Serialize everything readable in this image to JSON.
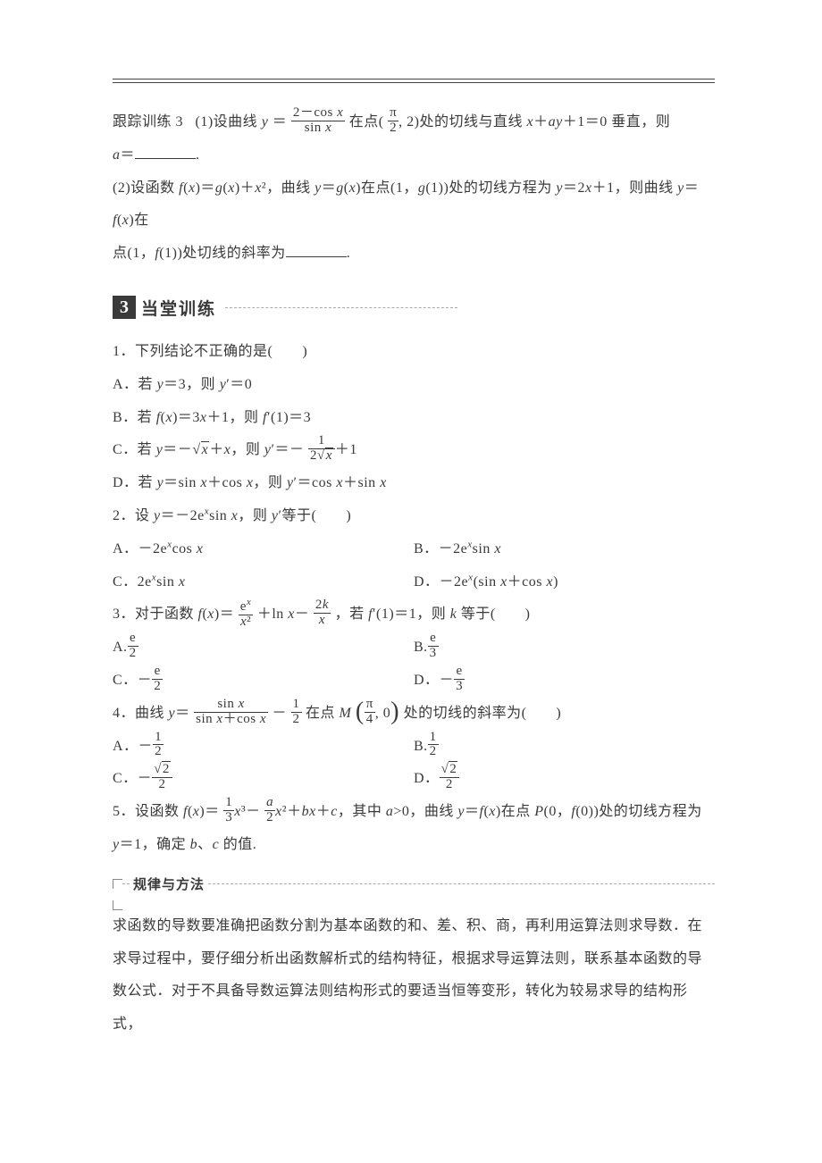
{
  "colors": {
    "text": "#3a3a3a",
    "bg": "#ffffff",
    "rule": "#444444",
    "dash": "#aaaaaa",
    "hdr_bg": "#3a3a3a",
    "hdr_fg": "#ffffff"
  },
  "typography": {
    "body_fontsize_pt": 12,
    "line_height": 2.3,
    "header_fontsize_pt": 14
  },
  "tracking": {
    "label": "跟踪训练 3",
    "p1_a": "(1)设曲线 ",
    "p1_b": "＝",
    "p1_frac_num": "2－cos ",
    "p1_frac_den": "sin ",
    "p1_c": " 在点(",
    "p1_pi2_num": "π",
    "p1_pi2_den": "2",
    "p1_d": ", 2)处的切线与直线 ",
    "p1_e": "＋",
    "p1_f": "＋1＝0 垂直，则",
    "p1_line2": "＝",
    "p2_a": "(2)设函数 ",
    "p2_b": "(",
    "p2_c": ")＝",
    "p2_d": "(",
    "p2_e": ")＋",
    "p2_f": "²，曲线 ",
    "p2_g": "＝",
    "p2_h": "(",
    "p2_i": ")在点(1，",
    "p2_j": "(1))处的切线方程为 ",
    "p2_k": "＝2",
    "p2_l": "＋1，则曲线 ",
    "p2_m": "＝",
    "p2_n": "(",
    "p2_o": ")在",
    "p2_line2a": "点(1，",
    "p2_line2b": "(1))处切线的斜率为",
    "period": "."
  },
  "section": {
    "num": "3",
    "title": "当堂训练"
  },
  "q1": {
    "stem": "1．下列结论不正确的是(　　)",
    "A_a": "A．若 ",
    "A_b": "＝3，则 ",
    "A_c": "′＝0",
    "B_a": "B．若 ",
    "B_b": "(",
    "B_c": ")＝3",
    "B_d": "＋1，则 ",
    "B_e": "′(1)＝3",
    "C_a": "C．若 ",
    "C_b": "＝－",
    "C_c": "＋",
    "C_d": "，则 ",
    "C_e": "′＝－",
    "C_frac_num": "1",
    "C_frac_den_a": "2",
    "C_f": "＋1",
    "D_a": "D．若 ",
    "D_b": "＝sin ",
    "D_c": "＋cos ",
    "D_d": "，则 ",
    "D_e": "′＝cos ",
    "D_f": "＋sin "
  },
  "q2": {
    "stem_a": "2．设 ",
    "stem_b": "＝－2e",
    "stem_c": "sin ",
    "stem_d": "，则 ",
    "stem_e": "′等于(　　)",
    "A": "A．－2e",
    "A2": "cos ",
    "B": "B．－2e",
    "B2": "sin ",
    "C": "C．2e",
    "C2": "sin ",
    "D": "D．－2e",
    "D2": "(sin ",
    "D3": "＋cos ",
    "D4": ")"
  },
  "q3": {
    "stem_a": "3．对于函数 ",
    "stem_b": "(",
    "stem_c": ")＝",
    "f1_num": "e",
    "f1_den": "²",
    "stem_d": "＋ln ",
    "stem_e": "－",
    "f2_num": "2",
    "f2_den": "",
    "stem_f": "，若 ",
    "stem_g": "′(1)＝1，则 ",
    "stem_h": " 等于(　　)",
    "A": "A.",
    "A_num": "e",
    "A_den": "2",
    "B": "B.",
    "B_num": "e",
    "B_den": "3",
    "C": "C．－",
    "C_num": "e",
    "C_den": "2",
    "D": "D．－",
    "D_num": "e",
    "D_den": "3"
  },
  "q4": {
    "stem_a": "4．曲线 ",
    "stem_b": "＝",
    "f_num_a": "sin ",
    "f_den_a": "sin ",
    "f_den_b": "＋cos ",
    "stem_c": "－",
    "half_num": "1",
    "half_den": "2",
    "stem_d": "在点 ",
    "pt_num": "π",
    "pt_den": "4",
    "pt_after": ", 0",
    "stem_e": "处的切线的斜率为(　　)",
    "A": "A．－",
    "A_num": "1",
    "A_den": "2",
    "B": "B.",
    "B_num": "1",
    "B_den": "2",
    "C": "C．－",
    "C_num": "2",
    "C_den": "2",
    "D": "D．",
    "D_num": "2",
    "D_den": "2"
  },
  "q5": {
    "a": "5．设函数 ",
    "b": "(",
    "c": ")＝",
    "t1_num": "1",
    "t1_den": "3",
    "d": "³－",
    "t2_den": "2",
    "e": "²＋",
    "f": "＋",
    "g": "，其中 ",
    "h": ">0，曲线 ",
    "i": "＝",
    "j": "(",
    "k": ")在点 ",
    "l": "(0，",
    "m": "(0))处的切线方程为",
    "line2_a": "＝1，确定 ",
    "line2_b": "、",
    "line2_c": " 的值."
  },
  "rules": {
    "label": "规律与方法",
    "p1": "求函数的导数要准确把函数分割为基本函数的和、差、积、商，再利用运算法则求导数．在",
    "p2": "求导过程中，要仔细分析出函数解析式的结构特征，根据求导运算法则，联系基本函数的导",
    "p3": "数公式．对于不具备导数运算法则结构形式的要适当恒等变形，转化为较易求导的结构形式，"
  }
}
